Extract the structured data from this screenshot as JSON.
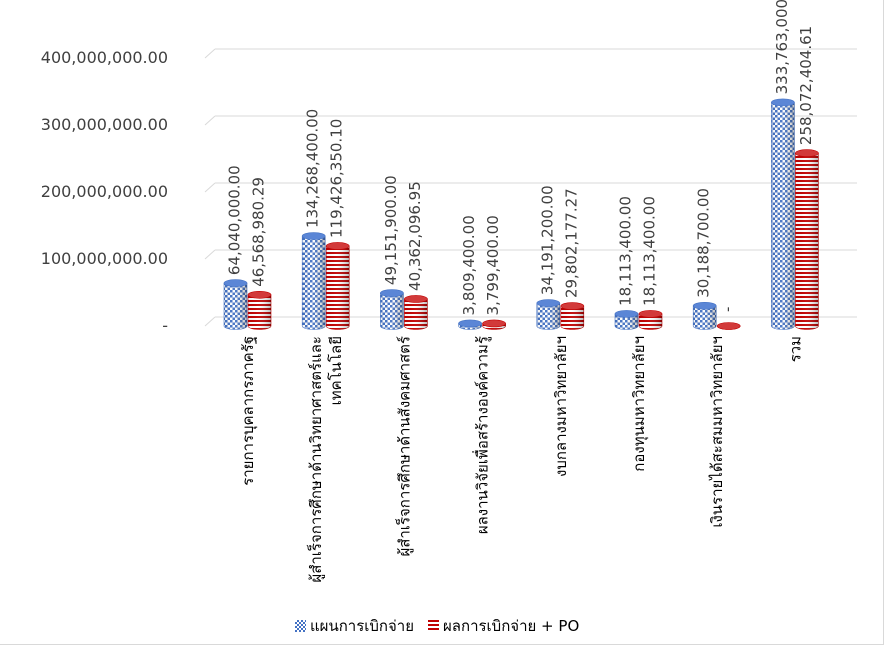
{
  "chart_data": {
    "type": "bar",
    "style": "3d-cylinder",
    "categories": [
      "รายการบุคลากรภาครัฐ",
      "ผู้สำเร็จการศึกษาด้านวิทยาศาสตร์และ เทคโนโลยี",
      "ผู้สำเร็จการศึกษาด้านสังคมศาสตร์",
      "ผลงานวิจัยเพื่อสร้างองค์ความรู้",
      "งบกลางมหาวิทยาลัยฯ",
      "กองทุนมหาวิทยาลัยฯ",
      "เงินรายได้สะสมมหาวิทยาลัยฯ",
      "รวม"
    ],
    "series": [
      {
        "name": "แผนการเบิกจ่าย",
        "color": "#4472c4",
        "pattern": "checker",
        "values": [
          64040000,
          134268400,
          49151900,
          3809400,
          34191200,
          18113400,
          30188700,
          333763000
        ],
        "labels": [
          "64,040,000.00",
          "134,268,400.00",
          "49,151,900.00",
          "3,809,400.00",
          "34,191,200.00",
          "18,113,400.00",
          "30,188,700.00",
          "333,763,000.00"
        ]
      },
      {
        "name": "ผลการเบิกจ่าย + PO",
        "color": "#c00000",
        "pattern": "horizontal-stripes",
        "values": [
          46568980.29,
          119426350.1,
          40362096.95,
          3799400,
          29802177.27,
          18113400,
          0,
          258072404.61
        ],
        "labels": [
          "46,568,980.29",
          "119,426,350.10",
          "40,362,096.95",
          "3,799,400.00",
          "29,802,177.27",
          "18,113,400.00",
          "-",
          "258,072,404.61"
        ]
      }
    ],
    "y_ticks": [
      0,
      100000000,
      200000000,
      300000000,
      400000000
    ],
    "y_tick_labels": [
      "-",
      "100,000,000.00",
      "200,000,000.00",
      "300,000,000.00",
      "400,000,000.00"
    ],
    "ylim": [
      0,
      400000000
    ],
    "grid": true,
    "legend_position": "bottom"
  }
}
